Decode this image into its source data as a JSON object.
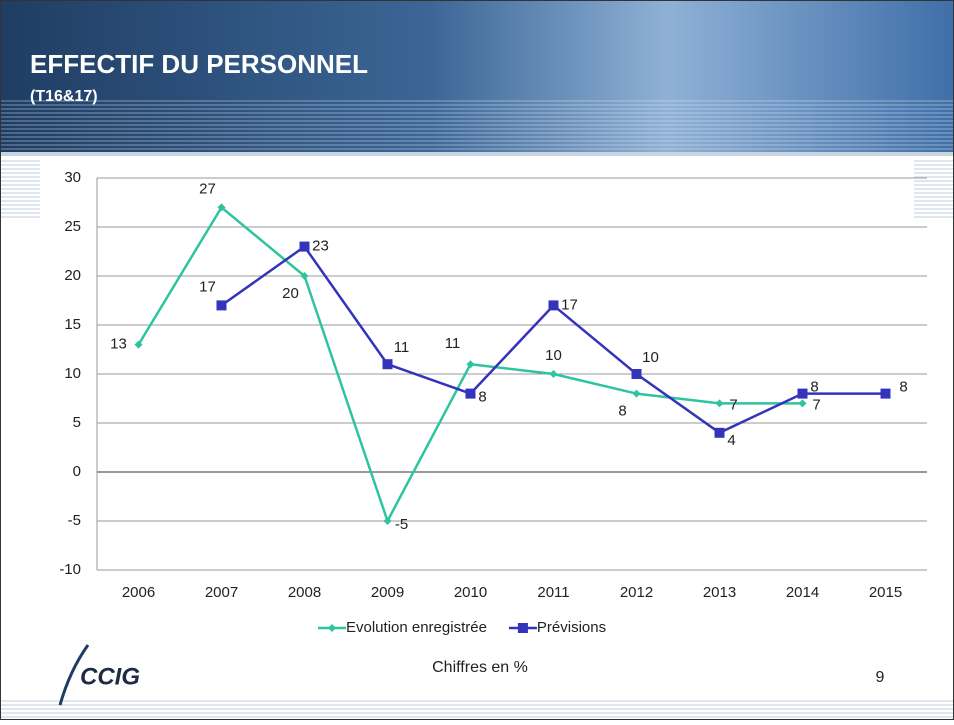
{
  "slide": {
    "title": "EFFECTIF DU PERSONNEL",
    "subtitle": "(T16&17)",
    "note": "Chiffres en %",
    "page_number": "9",
    "logo": "CCIG"
  },
  "chart_data": {
    "type": "line",
    "categories": [
      "2006",
      "2007",
      "2008",
      "2009",
      "2010",
      "2011",
      "2012",
      "2013",
      "2014",
      "2015"
    ],
    "series": [
      {
        "name": "Evolution enregistrée",
        "color": "#2ec4a0",
        "marker": "diamond",
        "values": [
          13,
          27,
          20,
          -5,
          11,
          10,
          8,
          7,
          7,
          null
        ]
      },
      {
        "name": "Prévisions",
        "color": "#3333bb",
        "marker": "square",
        "values": [
          null,
          17,
          23,
          11,
          8,
          17,
          10,
          4,
          8,
          8
        ]
      }
    ],
    "ylim": [
      -10,
      30
    ],
    "yticks": [
      -10,
      -5,
      0,
      5,
      10,
      15,
      20,
      25,
      30
    ],
    "grid": true,
    "legend": "bottom"
  }
}
